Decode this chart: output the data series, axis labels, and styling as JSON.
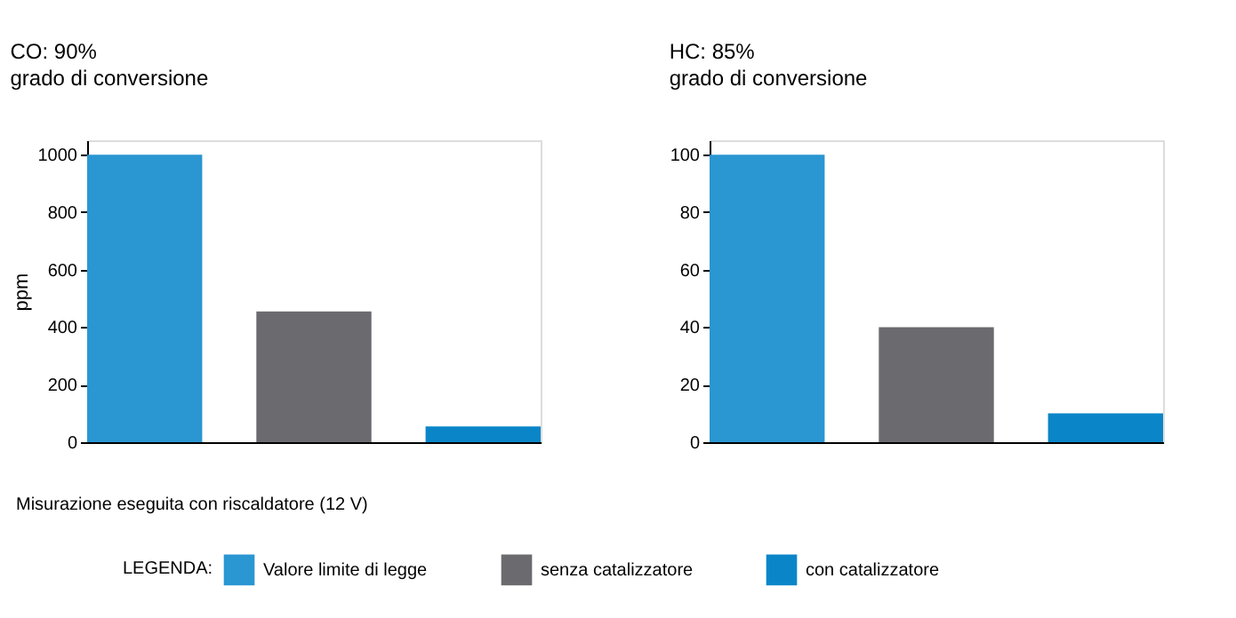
{
  "chart_data": [
    {
      "type": "bar",
      "title": "CO: 90%",
      "subtitle": "grado di conversione",
      "ylabel": "ppm",
      "categories": [
        null
      ],
      "ylim": [
        0,
        1050
      ],
      "yticks": [
        0,
        200,
        400,
        600,
        800,
        {
          "value": 1000,
          "label": "1000"
        }
      ],
      "grid": false,
      "legend": "bottom",
      "legend_title": "LEGENDA:",
      "series": [
        {
          "name": "Valore limite di legge",
          "color": "#2a96d2",
          "values": [
            1000
          ]
        },
        {
          "name": "senza catalizzatore",
          "color": "#6b6b6f",
          "values": [
            455
          ]
        },
        {
          "name": "con catalizzatore",
          "color": "#0a86c8",
          "values": [
            55
          ]
        }
      ],
      "annotations": [
        "Misurazione eseguita con riscaldatore (12 V)"
      ]
    },
    {
      "type": "bar",
      "title": "HC: 85%",
      "subtitle": "grado di conversione",
      "categories": [
        null
      ],
      "ylim": [
        0,
        105
      ],
      "yticks": [
        0,
        20,
        40,
        60,
        80,
        100
      ],
      "grid": false,
      "series": [
        {
          "name": "Valore limite di legge",
          "color": "#2a96d2",
          "values": [
            100
          ]
        },
        {
          "name": "senza catalizzatore",
          "color": "#6b6b6f",
          "values": [
            40
          ]
        },
        {
          "name": "con catalizzatore",
          "color": "#0a86c8",
          "values": [
            10
          ]
        }
      ]
    }
  ]
}
